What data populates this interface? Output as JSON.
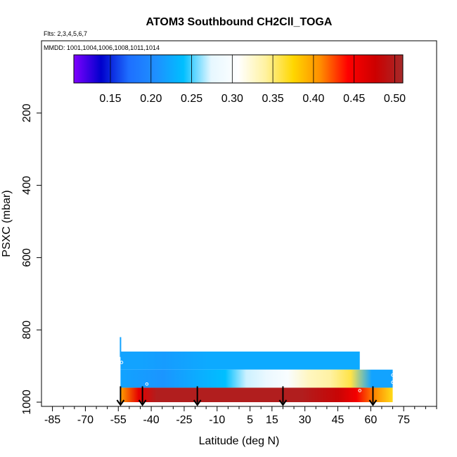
{
  "chart_data": {
    "type": "heatmap",
    "title": "ATOM3 Southbound CH2Cll_TOGA",
    "subtitle_flights": "Flts: 2,3,4,5,6,7",
    "subtitle_dates": "MMDD: 1001,1004,1006,1008,1011,1014",
    "xlabel": "Latitude (deg N)",
    "ylabel": "PSXC (mbar)",
    "xlim": [
      -90,
      90
    ],
    "ylim": [
      1000,
      0
    ],
    "x_ticks": [
      -85,
      -70,
      -55,
      -40,
      -25,
      -10,
      5,
      15,
      30,
      45,
      60,
      75
    ],
    "y_ticks": [
      200,
      400,
      600,
      800,
      1000
    ],
    "colorbar": {
      "min": 0.105,
      "max": 0.51,
      "tick_values": [
        0.15,
        0.2,
        0.25,
        0.3,
        0.35,
        0.4,
        0.45,
        0.5
      ],
      "tick_labels": [
        "0.15",
        "0.20",
        "0.25",
        "0.30",
        "0.35",
        "0.40",
        "0.45",
        "0.50"
      ],
      "colors": [
        "#7f00ff",
        "#0000cc",
        "#1e6fff",
        "#1e90ff",
        "#00bfff",
        "#e6f7ff",
        "#ffffff",
        "#fff2a0",
        "#ffd700",
        "#ff8c00",
        "#ff0000",
        "#cc0000",
        "#a52a2a"
      ]
    },
    "bands": [
      {
        "p_top": 860,
        "p_bottom": 910,
        "lat_start": -54,
        "lat_end": 55,
        "values": [
          0.22,
          0.22,
          0.215,
          0.22,
          0.225,
          0.225,
          0.225,
          0.225,
          0.225,
          0.225,
          0.225,
          0.225
        ]
      },
      {
        "p_top": 910,
        "p_bottom": 960,
        "lat_start": -54,
        "lat_end": 70,
        "values": [
          0.22,
          0.215,
          0.21,
          0.22,
          0.23,
          0.24,
          0.27,
          0.28,
          0.3,
          0.33,
          0.34,
          0.36,
          0.22,
          0.22
        ]
      },
      {
        "p_top": 960,
        "p_bottom": 1000,
        "lat_start": -54,
        "lat_end": 70,
        "values": [
          0.4,
          0.46,
          0.5,
          0.5,
          0.5,
          0.5,
          0.5,
          0.5,
          0.5,
          0.5,
          0.5,
          0.49,
          0.48,
          0.45,
          0.41,
          0.37
        ]
      }
    ],
    "profile_line": {
      "lat": -54,
      "p_top": 820,
      "p_bottom": 875,
      "value": 0.22
    },
    "markers": [
      {
        "lat": -53.5,
        "p": 890
      },
      {
        "lat": -42,
        "p": 950
      },
      {
        "lat": 55,
        "p": 968
      },
      {
        "lat": 70,
        "p": 925
      },
      {
        "lat": 70,
        "p": 945
      }
    ],
    "arrows_lat": [
      -54,
      -44,
      -19,
      20,
      61
    ]
  }
}
